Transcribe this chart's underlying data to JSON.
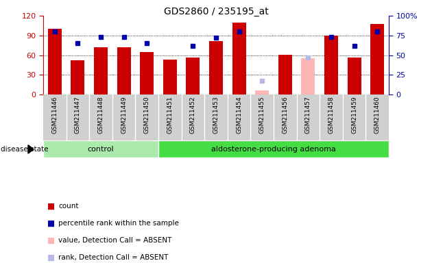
{
  "title": "GDS2860 / 235195_at",
  "samples": [
    "GSM211446",
    "GSM211447",
    "GSM211448",
    "GSM211449",
    "GSM211450",
    "GSM211451",
    "GSM211452",
    "GSM211453",
    "GSM211454",
    "GSM211455",
    "GSM211456",
    "GSM211457",
    "GSM211458",
    "GSM211459",
    "GSM211460"
  ],
  "count_values": [
    100,
    52,
    72,
    72,
    65,
    53,
    57,
    82,
    110,
    null,
    61,
    null,
    90,
    57,
    108
  ],
  "count_absent": [
    null,
    null,
    null,
    null,
    null,
    null,
    null,
    null,
    null,
    7,
    null,
    55,
    null,
    null,
    null
  ],
  "rank_values": [
    80,
    65,
    73,
    73,
    65,
    null,
    62,
    72,
    80,
    null,
    null,
    null,
    73,
    62,
    80
  ],
  "rank_absent": [
    null,
    null,
    null,
    null,
    null,
    null,
    null,
    null,
    null,
    18,
    null,
    47,
    null,
    null,
    null
  ],
  "control_count": 5,
  "adenoma_count": 10,
  "ylim_left": [
    0,
    120
  ],
  "ylim_right": [
    0,
    100
  ],
  "yticks_left": [
    0,
    30,
    60,
    90,
    120
  ],
  "yticks_right": [
    0,
    25,
    50,
    75,
    100
  ],
  "bar_color_red": "#cc0000",
  "bar_color_absent": "#ffb6b6",
  "rank_color_blue": "#0000aa",
  "rank_color_absent": "#b8b8e8",
  "grid_color": "#000000",
  "bg_color": "#d0d0d0",
  "group_bg_control": "#aaeaaa",
  "group_bg_adenoma": "#44dd44",
  "disease_state_label": "disease state",
  "group_labels": [
    "control",
    "aldosterone-producing adenoma"
  ],
  "legend_items": [
    {
      "label": "count",
      "color": "#cc0000"
    },
    {
      "label": "percentile rank within the sample",
      "color": "#0000aa"
    },
    {
      "label": "value, Detection Call = ABSENT",
      "color": "#ffb6b6"
    },
    {
      "label": "rank, Detection Call = ABSENT",
      "color": "#b8b8e8"
    }
  ],
  "left_ylabel_color": "#cc0000",
  "right_ylabel_color": "#0000aa",
  "grid_dotted_vals": [
    30,
    60,
    90
  ]
}
